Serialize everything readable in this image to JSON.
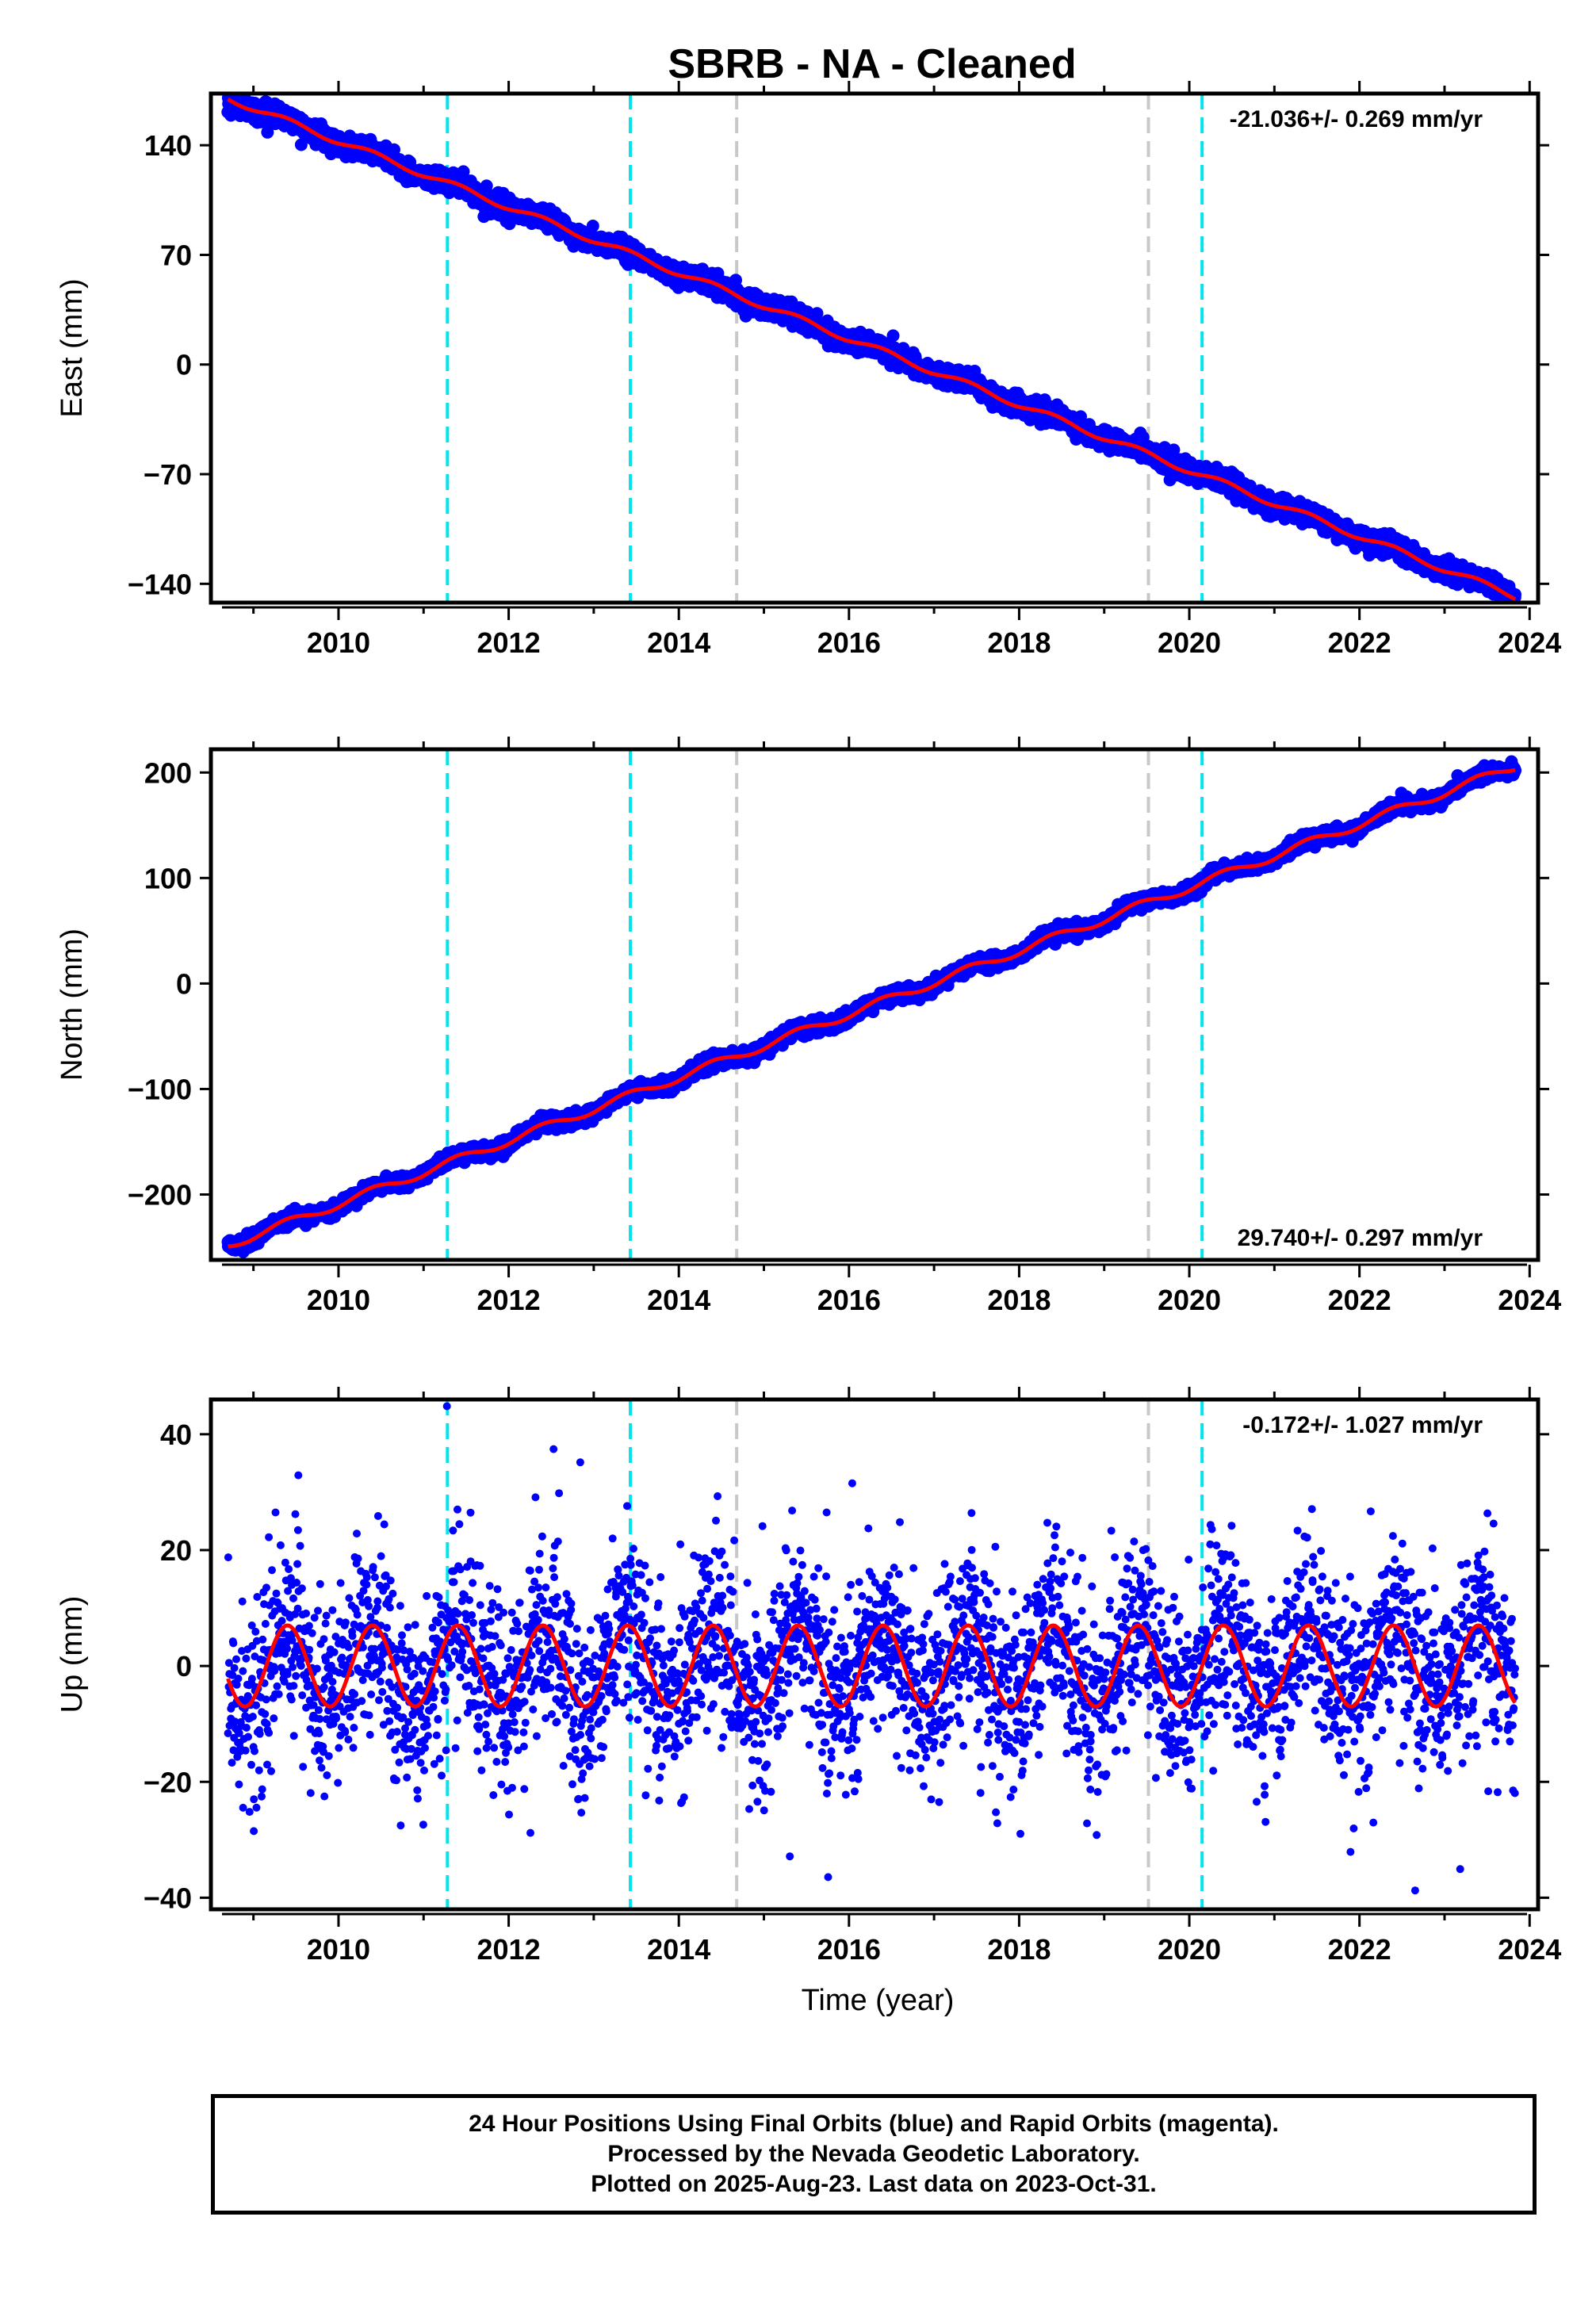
{
  "title": "SBRB  - NA - Cleaned",
  "footer": {
    "line1": "24 Hour Positions Using Final Orbits (blue) and Rapid Orbits (magenta).",
    "line2": "Processed by the Nevada Geodetic Laboratory.",
    "line3": "Plotted on 2025-Aug-23. Last data on 2023-Oct-31."
  },
  "colors": {
    "data_points": "#0000ff",
    "model_fit": "#ff0000",
    "equipment_change_lines": "#00e5ee",
    "other_event_lines": "#c8c8c8"
  },
  "chart_data": [
    {
      "type": "scatter",
      "component": "east",
      "ylabel": "East (mm)",
      "xlabel": "",
      "xlim": [
        2008.5,
        2024.1
      ],
      "ylim": [
        -152,
        173
      ],
      "x_ticks": [
        "2010",
        "2012",
        "2014",
        "2016",
        "2018",
        "2020",
        "2022",
        "2024"
      ],
      "y_ticks": [
        "140",
        "70",
        "0",
        "−70",
        "−140"
      ],
      "y_tick_values": [
        140,
        70,
        0,
        -70,
        -140
      ],
      "rate_text": "-21.036+/- 0.269 mm/yr",
      "rate_position": "top-right",
      "rate_mm_per_yr": -21.036,
      "rate_uncertainty": 0.269,
      "time_span": [
        2008.7,
        2023.83
      ],
      "start_value": 170,
      "end_value": -148,
      "scatter_mm": 3,
      "seasonal_amplitude_mm": 2,
      "event_lines_cyan": [
        2011.28,
        2013.43,
        2020.15
      ],
      "event_lines_grey": [
        2014.68,
        2019.52
      ]
    },
    {
      "type": "scatter",
      "component": "north",
      "ylabel": "North (mm)",
      "xlabel": "",
      "xlim": [
        2008.5,
        2024.1
      ],
      "ylim": [
        -262,
        222
      ],
      "x_ticks": [
        "2010",
        "2012",
        "2014",
        "2016",
        "2018",
        "2020",
        "2022",
        "2024"
      ],
      "y_ticks": [
        "200",
        "100",
        "0",
        "−100",
        "−200"
      ],
      "y_tick_values": [
        200,
        100,
        0,
        -100,
        -200
      ],
      "rate_text": "29.740+/- 0.297 mm/yr",
      "rate_position": "bottom-right",
      "rate_mm_per_yr": 29.74,
      "rate_uncertainty": 0.297,
      "time_span": [
        2008.7,
        2023.83
      ],
      "start_value": -248,
      "end_value": 206,
      "scatter_mm": 3,
      "seasonal_amplitude_mm": 4,
      "event_lines_cyan": [
        2011.28,
        2013.43,
        2020.15
      ],
      "event_lines_grey": [
        2014.68,
        2019.52
      ]
    },
    {
      "type": "scatter",
      "component": "up",
      "ylabel": "Up (mm)",
      "xlabel": "Time (year)",
      "xlim": [
        2008.5,
        2024.1
      ],
      "ylim": [
        -42,
        46
      ],
      "x_ticks": [
        "2010",
        "2012",
        "2014",
        "2016",
        "2018",
        "2020",
        "2022",
        "2024"
      ],
      "y_ticks": [
        "40",
        "20",
        "0",
        "−20",
        "−40"
      ],
      "y_tick_values": [
        40,
        20,
        0,
        -20,
        -40
      ],
      "rate_text": "-0.172+/- 1.027 mm/yr",
      "rate_position": "top-right",
      "rate_mm_per_yr": -0.172,
      "rate_uncertainty": 1.027,
      "time_span": [
        2008.7,
        2023.83
      ],
      "start_value": 0,
      "end_value": 0,
      "scatter_mm": 8,
      "seasonal_amplitude_mm": 7,
      "event_lines_cyan": [
        2011.28,
        2013.43,
        2020.15
      ],
      "event_lines_grey": [
        2014.68,
        2019.52
      ]
    }
  ]
}
